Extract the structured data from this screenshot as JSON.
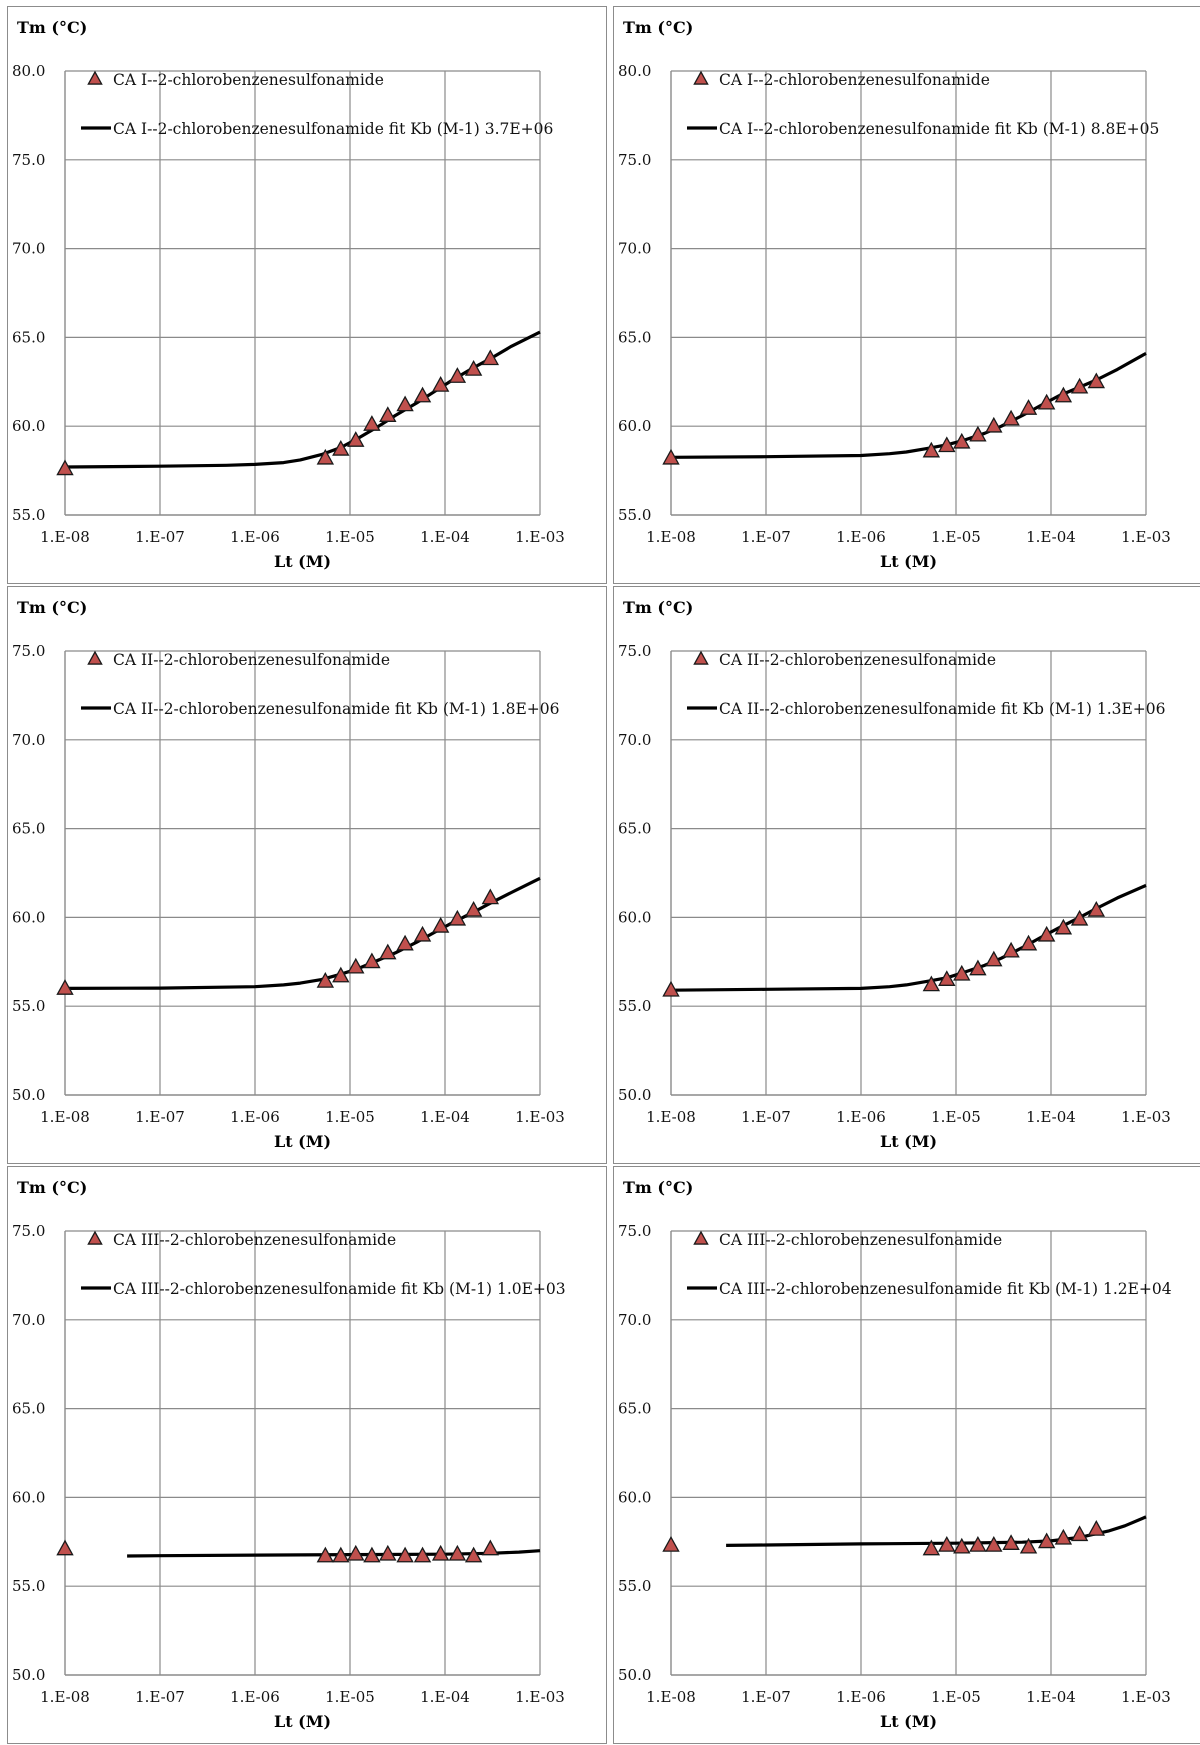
{
  "colors": {
    "marker_fill": "#c0504d",
    "marker_stroke": "#1a1a1a",
    "fit_line": "#000000",
    "grid": "#8a8a8a",
    "panel_border": "#8c8c8c"
  },
  "chart_data": [
    {
      "type": "scatter",
      "ylabel": "Tm (°C)",
      "xlabel": "Lt (M)",
      "x_scale": "log",
      "xlim": [
        1e-08,
        0.001
      ],
      "x_tick_labels": [
        "1.E-08",
        "1.E-07",
        "1.E-06",
        "1.E-05",
        "1.E-04",
        "1.E-03"
      ],
      "ylim": [
        55.0,
        80.0
      ],
      "y_tick_labels": [
        "55.0",
        "60.0",
        "65.0",
        "70.0",
        "75.0",
        "80.0"
      ],
      "grid": true,
      "legend_position": "top-left",
      "series": [
        {
          "name": "CA I--2-chlorobenzenesulfonamide",
          "kind": "points",
          "marker": "triangle",
          "x": [
            1e-08,
            5.5e-06,
            8e-06,
            1.15e-05,
            1.7e-05,
            2.5e-05,
            3.8e-05,
            5.8e-05,
            9e-05,
            0.000135,
            0.0002,
            0.0003
          ],
          "y": [
            57.6,
            58.2,
            58.7,
            59.2,
            60.1,
            60.6,
            61.2,
            61.7,
            62.3,
            62.8,
            63.2,
            63.8
          ]
        },
        {
          "name": "CA I--2-chlorobenzenesulfonamide fit Kb (M-1) 3.7E+06",
          "kind": "line",
          "x": [
            1e-08,
            1e-07,
            5e-07,
            1e-06,
            2e-06,
            3e-06,
            5e-06,
            8e-06,
            1.2e-05,
            2e-05,
            3e-05,
            5e-05,
            8e-05,
            0.00012,
            0.0002,
            0.0003,
            0.0005,
            0.001
          ],
          "y": [
            57.7,
            57.75,
            57.8,
            57.85,
            57.95,
            58.1,
            58.4,
            58.8,
            59.3,
            60.0,
            60.6,
            61.3,
            62.0,
            62.6,
            63.3,
            63.8,
            64.5,
            65.3
          ]
        }
      ]
    },
    {
      "type": "scatter",
      "ylabel": "Tm (°C)",
      "xlabel": "Lt (M)",
      "x_scale": "log",
      "xlim": [
        1e-08,
        0.001
      ],
      "x_tick_labels": [
        "1.E-08",
        "1.E-07",
        "1.E-06",
        "1.E-05",
        "1.E-04",
        "1.E-03"
      ],
      "ylim": [
        55.0,
        80.0
      ],
      "y_tick_labels": [
        "55.0",
        "60.0",
        "65.0",
        "70.0",
        "75.0",
        "80.0"
      ],
      "grid": true,
      "legend_position": "top-left",
      "series": [
        {
          "name": "CA I--2-chlorobenzenesulfonamide",
          "kind": "points",
          "marker": "triangle",
          "x": [
            1e-08,
            5.5e-06,
            8e-06,
            1.15e-05,
            1.7e-05,
            2.5e-05,
            3.8e-05,
            5.8e-05,
            9e-05,
            0.000135,
            0.0002,
            0.0003
          ],
          "y": [
            58.2,
            58.6,
            58.9,
            59.1,
            59.5,
            60.0,
            60.4,
            61.0,
            61.3,
            61.7,
            62.2,
            62.5
          ]
        },
        {
          "name": "CA I--2-chlorobenzenesulfonamide fit Kb (M-1) 8.8E+05",
          "kind": "line",
          "x": [
            1e-08,
            1e-07,
            1e-06,
            2e-06,
            3e-06,
            5e-06,
            8e-06,
            1.2e-05,
            2e-05,
            3e-05,
            5e-05,
            8e-05,
            0.00012,
            0.0002,
            0.0003,
            0.0005,
            0.001
          ],
          "y": [
            58.25,
            58.28,
            58.35,
            58.45,
            58.55,
            58.75,
            58.95,
            59.2,
            59.6,
            60.0,
            60.6,
            61.2,
            61.7,
            62.2,
            62.6,
            63.2,
            64.1
          ]
        }
      ]
    },
    {
      "type": "scatter",
      "ylabel": "Tm (°C)",
      "xlabel": "Lt (M)",
      "x_scale": "log",
      "xlim": [
        1e-08,
        0.001
      ],
      "x_tick_labels": [
        "1.E-08",
        "1.E-07",
        "1.E-06",
        "1.E-05",
        "1.E-04",
        "1.E-03"
      ],
      "ylim": [
        50.0,
        75.0
      ],
      "y_tick_labels": [
        "50.0",
        "55.0",
        "60.0",
        "65.0",
        "70.0",
        "75.0"
      ],
      "grid": true,
      "legend_position": "top-left",
      "series": [
        {
          "name": "CA II--2-chlorobenzenesulfonamide",
          "kind": "points",
          "marker": "triangle",
          "x": [
            1e-08,
            5.5e-06,
            8e-06,
            1.15e-05,
            1.7e-05,
            2.5e-05,
            3.8e-05,
            5.8e-05,
            9e-05,
            0.000135,
            0.0002,
            0.0003
          ],
          "y": [
            56.0,
            56.4,
            56.7,
            57.2,
            57.5,
            58.0,
            58.5,
            59.0,
            59.5,
            59.9,
            60.4,
            61.1
          ]
        },
        {
          "name": "CA II--2-chlorobenzenesulfonamide fit Kb (M-1) 1.8E+06",
          "kind": "line",
          "x": [
            1e-08,
            1e-07,
            1e-06,
            2e-06,
            3e-06,
            5e-06,
            8e-06,
            1.2e-05,
            2e-05,
            3e-05,
            5e-05,
            8e-05,
            0.00012,
            0.0002,
            0.0003,
            0.0005,
            0.001
          ],
          "y": [
            56.0,
            56.02,
            56.1,
            56.2,
            56.3,
            56.5,
            56.8,
            57.1,
            57.6,
            58.0,
            58.6,
            59.2,
            59.7,
            60.3,
            60.8,
            61.4,
            62.2
          ]
        }
      ]
    },
    {
      "type": "scatter",
      "ylabel": "Tm (°C)",
      "xlabel": "Lt (M)",
      "x_scale": "log",
      "xlim": [
        1e-08,
        0.001
      ],
      "x_tick_labels": [
        "1.E-08",
        "1.E-07",
        "1.E-06",
        "1.E-05",
        "1.E-04",
        "1.E-03"
      ],
      "ylim": [
        50.0,
        75.0
      ],
      "y_tick_labels": [
        "50.0",
        "55.0",
        "60.0",
        "65.0",
        "70.0",
        "75.0"
      ],
      "grid": true,
      "legend_position": "top-left",
      "series": [
        {
          "name": "CA II--2-chlorobenzenesulfonamide",
          "kind": "points",
          "marker": "triangle",
          "x": [
            1e-08,
            5.5e-06,
            8e-06,
            1.15e-05,
            1.7e-05,
            2.5e-05,
            3.8e-05,
            5.8e-05,
            9e-05,
            0.000135,
            0.0002,
            0.0003
          ],
          "y": [
            55.9,
            56.2,
            56.5,
            56.8,
            57.1,
            57.6,
            58.1,
            58.5,
            59.0,
            59.4,
            59.9,
            60.4
          ]
        },
        {
          "name": "CA II--2-chlorobenzenesulfonamide fit Kb (M-1) 1.3E+06",
          "kind": "line",
          "x": [
            1e-08,
            1e-07,
            1e-06,
            2e-06,
            3e-06,
            5e-06,
            8e-06,
            1.2e-05,
            2e-05,
            3e-05,
            5e-05,
            8e-05,
            0.00012,
            0.0002,
            0.0003,
            0.0005,
            0.001
          ],
          "y": [
            55.9,
            55.95,
            56.0,
            56.1,
            56.2,
            56.4,
            56.6,
            56.9,
            57.3,
            57.7,
            58.3,
            58.9,
            59.4,
            60.0,
            60.5,
            61.1,
            61.8
          ]
        }
      ]
    },
    {
      "type": "scatter",
      "ylabel": "Tm (°C)",
      "xlabel": "Lt (M)",
      "x_scale": "log",
      "xlim": [
        1e-08,
        0.001
      ],
      "x_tick_labels": [
        "1.E-08",
        "1.E-07",
        "1.E-06",
        "1.E-05",
        "1.E-04",
        "1.E-03"
      ],
      "ylim": [
        50.0,
        75.0
      ],
      "y_tick_labels": [
        "50.0",
        "55.0",
        "60.0",
        "65.0",
        "70.0",
        "75.0"
      ],
      "grid": true,
      "legend_position": "top-left",
      "series": [
        {
          "name": "CA III--2-chlorobenzenesulfonamide",
          "kind": "points",
          "marker": "triangle",
          "x": [
            1e-08,
            5.5e-06,
            8e-06,
            1.15e-05,
            1.7e-05,
            2.5e-05,
            3.8e-05,
            5.8e-05,
            9e-05,
            0.000135,
            0.0002,
            0.0003
          ],
          "y": [
            57.1,
            56.7,
            56.7,
            56.8,
            56.7,
            56.8,
            56.7,
            56.7,
            56.8,
            56.8,
            56.7,
            57.1
          ]
        },
        {
          "name": "CA III--2-chlorobenzenesulfonamide fit Kb (M-1) 1.0E+03",
          "kind": "line",
          "x": [
            4.5e-08,
            1e-07,
            1e-06,
            1e-05,
            0.0001,
            0.0003,
            0.0006,
            0.001
          ],
          "y": [
            56.7,
            56.72,
            56.75,
            56.78,
            56.8,
            56.85,
            56.92,
            57.0
          ]
        }
      ]
    },
    {
      "type": "scatter",
      "ylabel": "Tm (°C)",
      "xlabel": "Lt (M)",
      "x_scale": "log",
      "xlim": [
        1e-08,
        0.001
      ],
      "x_tick_labels": [
        "1.E-08",
        "1.E-07",
        "1.E-06",
        "1.E-05",
        "1.E-04",
        "1.E-03"
      ],
      "ylim": [
        50.0,
        75.0
      ],
      "y_tick_labels": [
        "50.0",
        "55.0",
        "60.0",
        "65.0",
        "70.0",
        "75.0"
      ],
      "grid": true,
      "legend_position": "top-left",
      "series": [
        {
          "name": "CA III--2-chlorobenzenesulfonamide",
          "kind": "points",
          "marker": "triangle",
          "x": [
            1e-08,
            5.5e-06,
            8e-06,
            1.15e-05,
            1.7e-05,
            2.5e-05,
            3.8e-05,
            5.8e-05,
            9e-05,
            0.000135,
            0.0002,
            0.0003
          ],
          "y": [
            57.3,
            57.1,
            57.3,
            57.2,
            57.3,
            57.3,
            57.4,
            57.2,
            57.5,
            57.7,
            57.9,
            58.2
          ]
        },
        {
          "name": "CA III--2-chlorobenzenesulfonamide fit Kb (M-1) 1.2E+04",
          "kind": "line",
          "x": [
            3.8e-08,
            1e-07,
            1e-06,
            1e-05,
            5e-05,
            0.0001,
            0.0002,
            0.0004,
            0.0006,
            0.001
          ],
          "y": [
            57.3,
            57.32,
            57.38,
            57.42,
            57.48,
            57.55,
            57.75,
            58.1,
            58.4,
            58.9
          ]
        }
      ]
    }
  ]
}
